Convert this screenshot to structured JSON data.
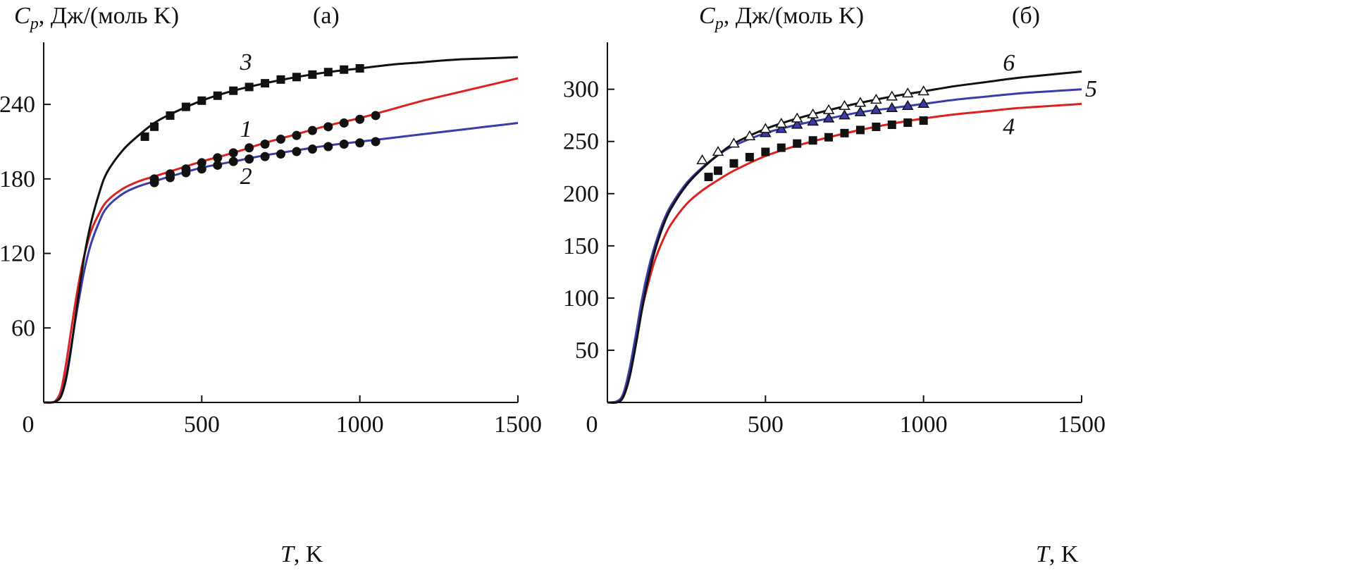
{
  "chart_data": [
    {
      "type": "line",
      "panel_label": "(а)",
      "ylabel_symbol": "C",
      "ylabel_sub": "p",
      "ylabel_units": ", Дж/(моль K)",
      "xlabel_symbol": "T",
      "xlabel_units": ", K",
      "xlim": [
        0,
        1500
      ],
      "ylim": [
        0,
        290
      ],
      "xticks": [
        0,
        500,
        1000,
        1500
      ],
      "xtick_labels": [
        "0",
        "500",
        "1000",
        "1500"
      ],
      "yticks": [
        60,
        120,
        180,
        240
      ],
      "ytick_labels": [
        "60",
        "120",
        "180",
        "240"
      ],
      "series": [
        {
          "name": "1",
          "label": "1",
          "color": "#e02020",
          "x": [
            0,
            25,
            40,
            55,
            70,
            85,
            100,
            115,
            130,
            150,
            175,
            200,
            250,
            300,
            350,
            400,
            500,
            600,
            700,
            800,
            900,
            1000,
            1100,
            1200,
            1300,
            1400,
            1500
          ],
          "y": [
            0,
            0,
            2,
            10,
            30,
            55,
            80,
            102,
            120,
            138,
            152,
            162,
            172,
            178,
            182,
            186,
            194,
            201,
            209,
            216,
            223,
            229,
            236,
            243,
            249,
            255,
            261
          ],
          "label_x": 640,
          "label_y": 214,
          "markers": "circle",
          "marker_x": [
            350,
            400,
            450,
            500,
            550,
            600,
            650,
            700,
            750,
            800,
            850,
            900,
            950,
            1000,
            1050
          ],
          "marker_y": [
            180,
            184,
            188,
            193,
            197,
            201,
            205,
            208,
            212,
            215,
            219,
            222,
            225,
            228,
            231
          ]
        },
        {
          "name": "2",
          "label": "2",
          "color": "#3c3ca8",
          "x": [
            0,
            25,
            40,
            55,
            70,
            85,
            100,
            115,
            130,
            150,
            175,
            200,
            250,
            300,
            350,
            400,
            500,
            600,
            700,
            800,
            900,
            1000,
            1100,
            1200,
            1300,
            1400,
            1500
          ],
          "y": [
            0,
            0,
            1,
            6,
            20,
            42,
            66,
            88,
            108,
            128,
            145,
            157,
            168,
            174,
            178,
            182,
            189,
            194,
            199,
            203,
            207,
            210,
            213,
            216,
            219,
            222,
            225
          ],
          "label_x": 640,
          "label_y": 176,
          "markers": "circle",
          "marker_x": [
            350,
            400,
            450,
            500,
            550,
            600,
            650,
            700,
            750,
            800,
            850,
            900,
            950,
            1000,
            1050
          ],
          "marker_y": [
            177,
            181,
            185,
            188,
            191,
            194,
            196,
            198,
            200,
            202,
            204,
            206,
            208,
            209,
            210
          ]
        },
        {
          "name": "3",
          "label": "3",
          "color": "#111111",
          "x": [
            0,
            25,
            40,
            55,
            70,
            85,
            100,
            115,
            130,
            150,
            175,
            200,
            250,
            300,
            350,
            400,
            500,
            600,
            700,
            800,
            900,
            1000,
            1100,
            1200,
            1300,
            1400,
            1500
          ],
          "y": [
            0,
            0,
            1,
            5,
            18,
            40,
            68,
            95,
            120,
            145,
            168,
            185,
            203,
            215,
            225,
            232,
            243,
            251,
            257,
            262,
            266,
            269,
            272,
            274,
            276,
            277,
            278
          ],
          "label_x": 640,
          "label_y": 268,
          "markers": "square",
          "marker_x": [
            320,
            350,
            400,
            450,
            500,
            550,
            600,
            650,
            700,
            750,
            800,
            850,
            900,
            950,
            1000
          ],
          "marker_y": [
            214,
            222,
            231,
            238,
            243,
            247,
            251,
            254,
            257,
            260,
            262,
            264,
            266,
            268,
            269
          ]
        }
      ]
    },
    {
      "type": "line",
      "panel_label": "(б)",
      "ylabel_symbol": "C",
      "ylabel_sub": "p",
      "ylabel_units": ", Дж/(моль K)",
      "xlabel_symbol": "T",
      "xlabel_units": ", K",
      "xlim": [
        0,
        1500
      ],
      "ylim": [
        0,
        345
      ],
      "xticks": [
        0,
        500,
        1000,
        1500
      ],
      "xtick_labels": [
        "0",
        "500",
        "1000",
        "1500"
      ],
      "yticks": [
        50,
        100,
        150,
        200,
        250,
        300
      ],
      "ytick_labels": [
        "50",
        "100",
        "150",
        "200",
        "250",
        "300"
      ],
      "series": [
        {
          "name": "4",
          "label": "4",
          "color": "#e02020",
          "x": [
            0,
            30,
            50,
            70,
            90,
            110,
            130,
            150,
            175,
            200,
            250,
            300,
            350,
            400,
            500,
            600,
            700,
            800,
            900,
            1000,
            1100,
            1200,
            1300,
            1400,
            1500
          ],
          "y": [
            0,
            1,
            8,
            30,
            60,
            90,
            115,
            136,
            155,
            170,
            190,
            203,
            213,
            222,
            236,
            246,
            254,
            261,
            267,
            272,
            276,
            279,
            282,
            284,
            286
          ],
          "label_x": 1270,
          "label_y": 257,
          "markers": "square",
          "marker_x": [
            320,
            350,
            400,
            450,
            500,
            550,
            600,
            650,
            700,
            750,
            800,
            850,
            900,
            950,
            1000
          ],
          "marker_y": [
            216,
            222,
            229,
            235,
            240,
            244,
            248,
            251,
            254,
            258,
            261,
            264,
            266,
            268,
            270
          ]
        },
        {
          "name": "5",
          "label": "5",
          "color": "#3c3ca8",
          "x": [
            0,
            30,
            50,
            70,
            90,
            110,
            130,
            150,
            175,
            200,
            250,
            300,
            350,
            400,
            500,
            600,
            700,
            800,
            900,
            1000,
            1100,
            1200,
            1300,
            1400,
            1500
          ],
          "y": [
            0,
            1,
            8,
            32,
            65,
            100,
            128,
            150,
            172,
            188,
            210,
            225,
            237,
            246,
            258,
            266,
            272,
            278,
            282,
            286,
            290,
            293,
            296,
            298,
            300
          ],
          "label_x": 1530,
          "label_y": 293,
          "markers": "triangle",
          "marker_x": [
            500,
            550,
            600,
            650,
            700,
            750,
            800,
            850,
            900,
            950,
            1000
          ],
          "marker_y": [
            258,
            262,
            266,
            269,
            272,
            275,
            278,
            280,
            282,
            284,
            286
          ]
        },
        {
          "name": "6",
          "label": "6",
          "color": "#111111",
          "x": [
            0,
            30,
            50,
            70,
            90,
            110,
            130,
            150,
            175,
            200,
            250,
            300,
            350,
            400,
            500,
            600,
            700,
            800,
            900,
            1000,
            1100,
            1200,
            1300,
            1400,
            1500
          ],
          "y": [
            0,
            0,
            5,
            24,
            55,
            90,
            120,
            145,
            168,
            185,
            208,
            224,
            237,
            248,
            262,
            272,
            280,
            287,
            293,
            298,
            303,
            307,
            311,
            314,
            317
          ],
          "label_x": 1270,
          "label_y": 318,
          "markers": "triangle",
          "marker_x": [
            300,
            350,
            400,
            450,
            500,
            550,
            600,
            650,
            700,
            750,
            800,
            850,
            900,
            950,
            1000
          ],
          "marker_y": [
            232,
            240,
            248,
            255,
            262,
            267,
            272,
            276,
            280,
            284,
            287,
            290,
            293,
            296,
            298
          ]
        }
      ]
    }
  ]
}
